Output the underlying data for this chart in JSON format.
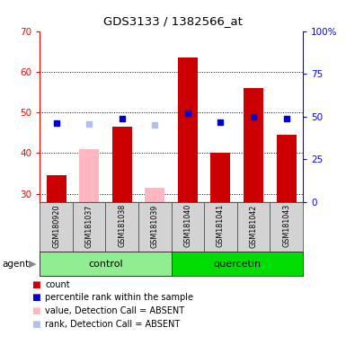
{
  "title": "GDS3133 / 1382566_at",
  "samples": [
    "GSM180920",
    "GSM181037",
    "GSM181038",
    "GSM181039",
    "GSM181040",
    "GSM181041",
    "GSM181042",
    "GSM181043"
  ],
  "groups": [
    {
      "name": "control",
      "indices": [
        0,
        1,
        2,
        3
      ],
      "color": "#90EE90"
    },
    {
      "name": "quercetin",
      "indices": [
        4,
        5,
        6,
        7
      ],
      "color": "#00DD00"
    }
  ],
  "red_bars": [
    34.5,
    null,
    46.5,
    null,
    63.5,
    40.0,
    56.0,
    44.5
  ],
  "pink_bars": [
    null,
    41.0,
    null,
    31.5,
    null,
    null,
    null,
    null
  ],
  "blue_squares_pct": [
    46.0,
    null,
    49.0,
    null,
    52.0,
    46.5,
    50.0,
    49.0
  ],
  "lavender_squares_pct": [
    null,
    45.5,
    null,
    45.0,
    null,
    null,
    null,
    null
  ],
  "ylim_left": [
    28,
    70
  ],
  "ylim_right": [
    0,
    100
  ],
  "yticks_left": [
    30,
    40,
    50,
    60,
    70
  ],
  "yticks_right": [
    0,
    25,
    50,
    75,
    100
  ],
  "ytick_labels_right": [
    "0",
    "25",
    "50",
    "75",
    "100%"
  ],
  "bar_width": 0.6,
  "sample_bg_color": "#d3d3d3",
  "legend_items": [
    {
      "color": "#CC0000",
      "label": "count"
    },
    {
      "color": "#0000CC",
      "label": "percentile rank within the sample"
    },
    {
      "color": "#FFB6C1",
      "label": "value, Detection Call = ABSENT"
    },
    {
      "color": "#B0C0E8",
      "label": "rank, Detection Call = ABSENT"
    }
  ]
}
